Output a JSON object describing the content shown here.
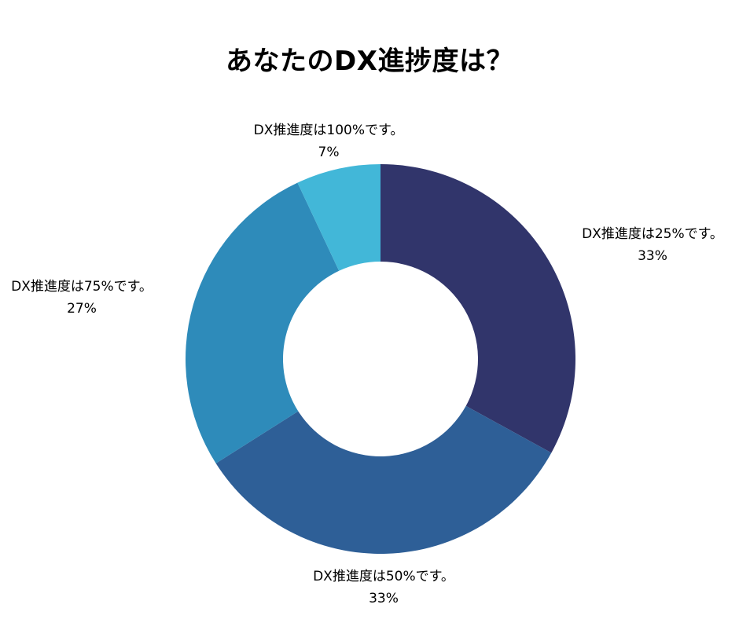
{
  "chart_data": {
    "type": "pie",
    "donut": true,
    "title": "あなたのDX進捗度は？",
    "slices": [
      {
        "label": "DX推進度は25%です。",
        "value": 33,
        "value_label": "33%",
        "color": "#31356b"
      },
      {
        "label": "DX推進度は50%です。",
        "value": 33,
        "value_label": "33%",
        "color": "#2e5f97"
      },
      {
        "label": "DX推進度は75%です。",
        "value": 27,
        "value_label": "27%",
        "color": "#2e8bba"
      },
      {
        "label": "DX推進度は100%です。",
        "value": 7,
        "value_label": "7%",
        "color": "#42b7d8"
      }
    ],
    "legend": "none"
  }
}
